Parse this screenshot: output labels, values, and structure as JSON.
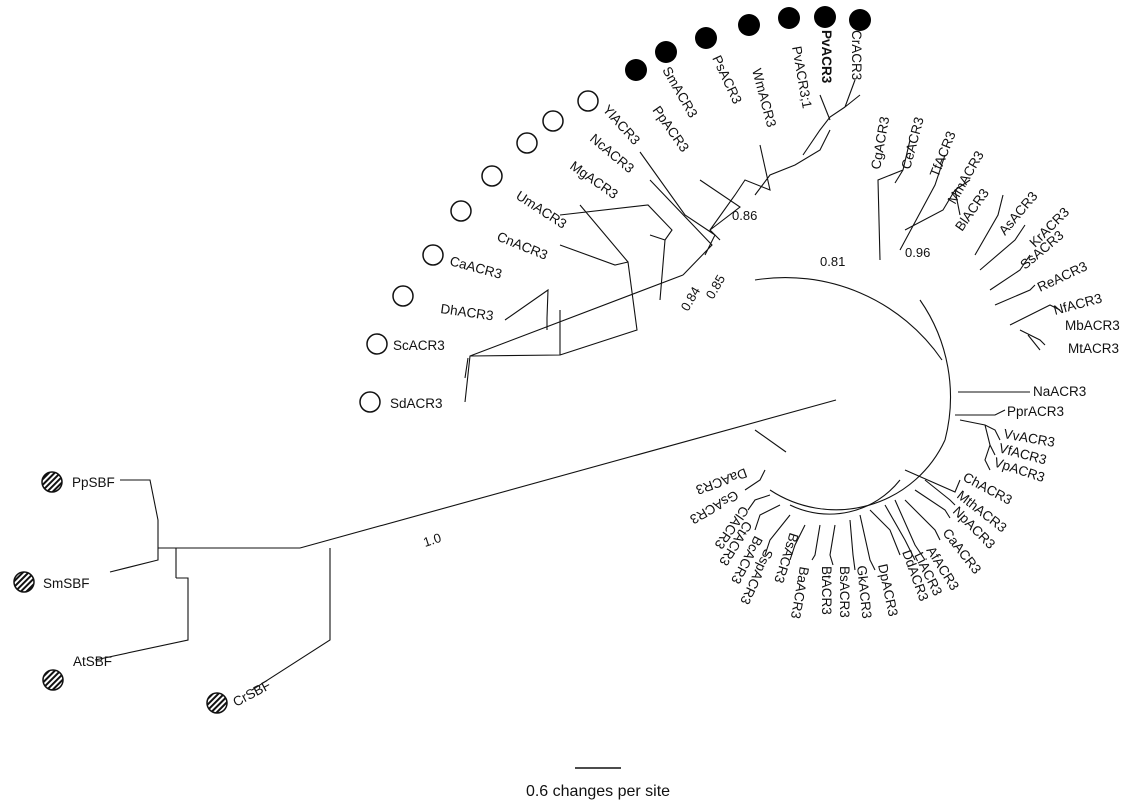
{
  "tree": {
    "support_values": [
      "0.86",
      "0.81",
      "0.84",
      "0.85",
      "0.96",
      "1.0"
    ],
    "scale_bar_label": "0.6 changes per site",
    "markers": {
      "filled": "#000000",
      "open": "#ffffff",
      "hatched": "hatched-gray"
    },
    "taxa": {
      "PvACR3": "PvACR3",
      "PvACR3_1": "PvACR3;1",
      "CrACR3": "CrACR3",
      "WmACR3": "WmACR3",
      "PsACR3": "PsACR3",
      "SmACR3": "SmACR3",
      "PpACR3": "PpACR3",
      "YlACR3": "YlACR3",
      "NcACR3": "NcACR3",
      "MgACR3": "MgACR3",
      "UmACR3": "UmACR3",
      "CnACR3": "CnACR3",
      "CaACR3_f": "CaACR3",
      "DhACR3": "DhACR3",
      "ScACR3": "ScACR3",
      "SdACR3": "SdACR3",
      "CgACR3": "CgACR3",
      "CeACR3": "CeACR3",
      "TfACR3": "TfACR3",
      "MmACR3": "MmACR3",
      "BlACR3": "BlACR3",
      "AsACR3": "AsACR3",
      "KrACR3": "KrACR3",
      "SsACR3": "SsACR3",
      "ReACR3": "ReACR3",
      "NfACR3": "NfACR3",
      "MbACR3": "MbACR3",
      "MtACR3": "MtACR3",
      "NaACR3": "NaACR3",
      "PprACR3": "PprACR3",
      "VvACR3": "VvACR3",
      "VfACR3": "VfACR3",
      "VpACR3": "VpACR3",
      "ChACR3": "ChACR3",
      "MthACR3": "MthACR3",
      "NpACR3": "NpACR3",
      "CaACR3_b": "CaACR3",
      "AfACR3": "AfACR3",
      "LiACR3": "LiACR3",
      "DdACR3": "DdACR3",
      "DpACR3": "DpACR3",
      "GkACR3": "GkACR3",
      "BsACR3": "BsACR3",
      "BtACR3": "BtACR3",
      "BaACR3": "BaACR3",
      "SspACR3": "SspACR3",
      "BcACR3": "BcACR3",
      "CtACR3": "CtACR3",
      "ClACR3": "ClACR3",
      "GsACR3": "GsACR3",
      "DaACR3": "DaACR3",
      "PpSBF": "PpSBF",
      "SmSBF": "SmSBF",
      "AtSBF": "AtSBF",
      "CrSBF": "CrSBF"
    }
  }
}
